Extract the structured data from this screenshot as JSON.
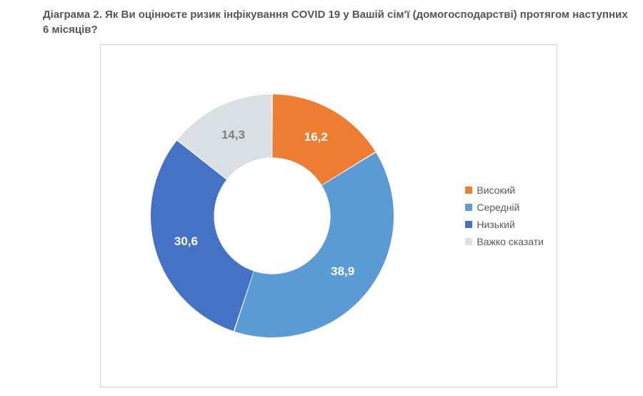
{
  "title": "Діаграма 2. Як Ви оцінюєте ризик інфікування COVID 19 у Вашій сім'ї (домогосподарстві) протягом наступних 6 місяців?",
  "chart": {
    "type": "donut",
    "background_color": "#ffffff",
    "border_color": "#d0d0d0",
    "inner_radius_ratio": 0.48,
    "outer_radius": 170,
    "start_angle_deg": 0,
    "slice_gap_deg": 0.5,
    "label_fontsize": 17,
    "label_fontweight": "bold",
    "series": [
      {
        "label": "Високий",
        "value": 16.2,
        "display": "16,2",
        "color": "#ed7d31",
        "label_color": "#ffffff"
      },
      {
        "label": "Середній",
        "value": 38.9,
        "display": "38,9",
        "color": "#5b9bd5",
        "label_color": "#ffffff"
      },
      {
        "label": "Низький",
        "value": 30.6,
        "display": "30,6",
        "color": "#4472c4",
        "label_color": "#ffffff"
      },
      {
        "label": "Важко сказати",
        "value": 14.3,
        "display": "14,3",
        "color": "#dadfe4",
        "label_color": "#7f7f7f"
      }
    ],
    "legend": {
      "position": "right",
      "bullet_size": 10,
      "fontsize": 14,
      "text_color": "#595959"
    }
  }
}
